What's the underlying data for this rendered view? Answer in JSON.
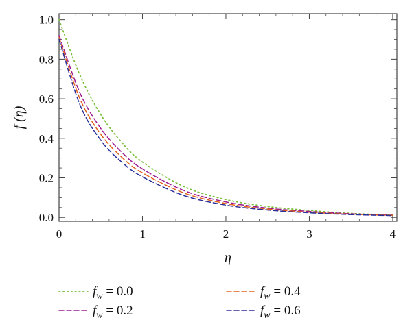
{
  "chart_data": {
    "type": "line",
    "title": "",
    "xlabel": "η",
    "ylabel": "f (η)",
    "xlim": [
      0,
      4.05
    ],
    "ylim": [
      -0.02,
      1.03
    ],
    "xticks": [
      "0",
      "1",
      "2",
      "3",
      "4"
    ],
    "yticks": [
      "0.0",
      "0.2",
      "0.4",
      "0.6",
      "0.8",
      "1.0"
    ],
    "grid": false,
    "legend_position": "bottom",
    "x": [
      0,
      0.25,
      0.5,
      0.75,
      1,
      1.5,
      2,
      2.5,
      3,
      3.5,
      4
    ],
    "series": [
      {
        "name": "f_w = 0.0",
        "legend_symbol": "f",
        "legend_sub": "w",
        "legend_value": " = 0.0",
        "color": "#7bbf3a",
        "dash": "dotted",
        "values": [
          1.0,
          0.72,
          0.52,
          0.38,
          0.28,
          0.155,
          0.09,
          0.055,
          0.035,
          0.02,
          0.012
        ]
      },
      {
        "name": "f_w = 0.2",
        "legend_symbol": "f",
        "legend_sub": "w",
        "legend_value": " = 0.2",
        "color": "#9b1b8e",
        "dash": "dashed",
        "values": [
          0.92,
          0.63,
          0.45,
          0.33,
          0.245,
          0.135,
          0.078,
          0.047,
          0.03,
          0.018,
          0.011
        ]
      },
      {
        "name": "f_w = 0.4",
        "legend_symbol": "f",
        "legend_sub": "w",
        "legend_value": " = 0.4",
        "color": "#e0601a",
        "dash": "dashed",
        "values": [
          0.91,
          0.6,
          0.42,
          0.305,
          0.225,
          0.123,
          0.07,
          0.042,
          0.026,
          0.016,
          0.01
        ]
      },
      {
        "name": "f_w = 0.6",
        "legend_symbol": "f",
        "legend_sub": "w",
        "legend_value": " = 0.6",
        "color": "#2a2f9a",
        "dash": "dashed",
        "values": [
          0.9,
          0.57,
          0.39,
          0.28,
          0.205,
          0.11,
          0.062,
          0.037,
          0.023,
          0.014,
          0.009
        ]
      }
    ]
  }
}
